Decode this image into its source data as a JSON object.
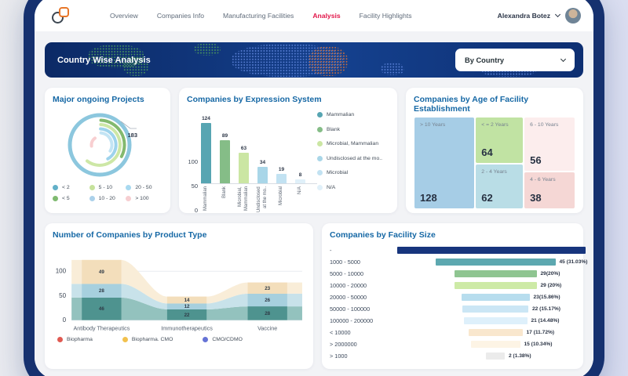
{
  "nav": {
    "items": [
      {
        "label": "Overview",
        "active": false
      },
      {
        "label": "Companies Info",
        "active": false
      },
      {
        "label": "Manufacturing Facilities",
        "active": false
      },
      {
        "label": "Analysis",
        "active": true
      },
      {
        "label": "Facility Highlights",
        "active": false
      }
    ],
    "user_name": "Alexandra Botez"
  },
  "banner": {
    "title": "Country Wise Analysis",
    "dropdown_value": "By Country"
  },
  "colors": {
    "accent_red": "#e2174a",
    "title_blue": "#1668a5",
    "frame_navy": "#16316f"
  },
  "cards": {
    "projects": {
      "title": "Major ongoing Projects",
      "chart_data": {
        "type": "radial-rings",
        "callout_value": "183",
        "outer_ring_color": "#8cc7de",
        "rings": [
          {
            "color": "#83b96e",
            "r": 31.5,
            "start": 3,
            "end": 118
          },
          {
            "color": "#cde7a6",
            "r": 26,
            "start": 3,
            "end": 218
          },
          {
            "color": "#9ed3ec",
            "r": 20.5,
            "start": 3,
            "end": 150
          },
          {
            "color": "#c3e4f4",
            "r": 15.5,
            "start": 6,
            "end": 120
          },
          {
            "color": "#f8cfd1",
            "r": 10.5,
            "start": 262,
            "end": 325
          }
        ],
        "legend": [
          {
            "label": "< 2",
            "color": "#62b0c8"
          },
          {
            "label": "5 - 10",
            "color": "#c6e29c"
          },
          {
            "label": "20 - 50",
            "color": "#a8d9f0"
          },
          {
            "label": "< 5",
            "color": "#7fba70"
          },
          {
            "label": "10 - 20",
            "color": "#abd1ea"
          },
          {
            "label": "> 100",
            "color": "#f6ced1"
          }
        ]
      }
    },
    "expression": {
      "title": "Companies by Expression System",
      "chart_data": {
        "type": "bar",
        "categories": [
          "Mammalian",
          "Blank",
          "Microbial,\nMammalian",
          "Undisclosed\nat the mo..",
          "Microbial",
          "N/A"
        ],
        "values": [
          124,
          89,
          63,
          34,
          19,
          8
        ],
        "colors": [
          "#57a5b2",
          "#85bd87",
          "#cbe6a3",
          "#a9d6e8",
          "#c2e2f2",
          "#e0f0f9"
        ],
        "yticks": [
          0,
          50,
          100
        ],
        "legend": [
          {
            "label": "Mammalian",
            "color": "#57a5b2"
          },
          {
            "label": "Blank",
            "color": "#85bd87"
          },
          {
            "label": "Microbial, Mammalian",
            "color": "#cbe6a3"
          },
          {
            "label": "Undisclosed at the mo..",
            "color": "#a9d6e8"
          },
          {
            "label": "Microbial",
            "color": "#c2e2f2"
          },
          {
            "label": "N/A",
            "color": "#e0f0f9"
          }
        ]
      }
    },
    "age": {
      "title": "Companies by Age of Facility Establishment",
      "chart_data": {
        "type": "treemap",
        "blocks": [
          {
            "label": "> 10 Years",
            "value": 128,
            "color": "#a6cde6",
            "col": 0
          },
          {
            "label": "< = 2 Years",
            "value": 64,
            "color": "#c1e3a3",
            "col": 1
          },
          {
            "label": "2 - 4 Years",
            "value": 62,
            "color": "#b9dde6",
            "col": 1
          },
          {
            "label": "6 - 10 Years",
            "value": 56,
            "color": "#fceded",
            "col": 2
          },
          {
            "label": "4 - 6 Years",
            "value": 38,
            "color": "#f5d7d5",
            "col": 2
          }
        ],
        "col_widths": [
          0.38,
          0.3,
          0.32
        ]
      }
    },
    "product": {
      "title": "Number of Companies by Product Type",
      "chart_data": {
        "type": "stacked-area",
        "categories": [
          "Antibody Therapeutics",
          "Immunotherapeutics",
          "Vaccine"
        ],
        "stack_order": "bottom-to-top",
        "stacks": [
          [
            46,
            28,
            49
          ],
          [
            22,
            12,
            14
          ],
          [
            28,
            26,
            23
          ]
        ],
        "band_colors": [
          "#4e938f",
          "#a7d0de",
          "#f3debb"
        ],
        "flow_colors": [
          "#93c2be",
          "#c8e2ea",
          "#f9edd8"
        ],
        "yticks": [
          0,
          50,
          100
        ],
        "legend": [
          {
            "label": "Biopharma",
            "color": "#e05a52"
          },
          {
            "label": "Biopharma. CMO",
            "color": "#f2c14e"
          },
          {
            "label": "CMO/CDMO",
            "color": "#6673d6"
          }
        ]
      }
    },
    "funnel": {
      "title": "Companies by Facility Size",
      "chart_data": {
        "type": "funnel",
        "rows": [
          {
            "label": "-",
            "value": null,
            "value_text": "",
            "color": "#17357d"
          },
          {
            "label": "1000 - 5000",
            "value": 45,
            "value_text": "45 (31.03%)",
            "color": "#5da8b0"
          },
          {
            "label": "5000 - 10000",
            "value": 29,
            "value_text": "29(20%)",
            "color": "#8fc591"
          },
          {
            "label": "10000 - 20000",
            "value": 29,
            "value_text": "29 (20%)",
            "color": "#cdeaa6"
          },
          {
            "label": "20000 - 50000",
            "value": 23,
            "value_text": "23(15.86%)",
            "color": "#b7ddee"
          },
          {
            "label": "50000 - 100000",
            "value": 22,
            "value_text": "22 (15.17%)",
            "color": "#cbe6f5"
          },
          {
            "label": "100000 - 200000",
            "value": 21,
            "value_text": "21 (14.48%)",
            "color": "#def0fb"
          },
          {
            "label": "< 10000",
            "value": 17,
            "value_text": "17 (11.72%)",
            "color": "#f9e7ce"
          },
          {
            "label": "> 2000000",
            "value": 15,
            "value_text": "15 (10.34%)",
            "color": "#fdf4e5"
          },
          {
            "label": "> 1000",
            "value": 2,
            "value_text": "2 (1.38%)",
            "color": "#ebebeb"
          }
        ]
      }
    }
  }
}
